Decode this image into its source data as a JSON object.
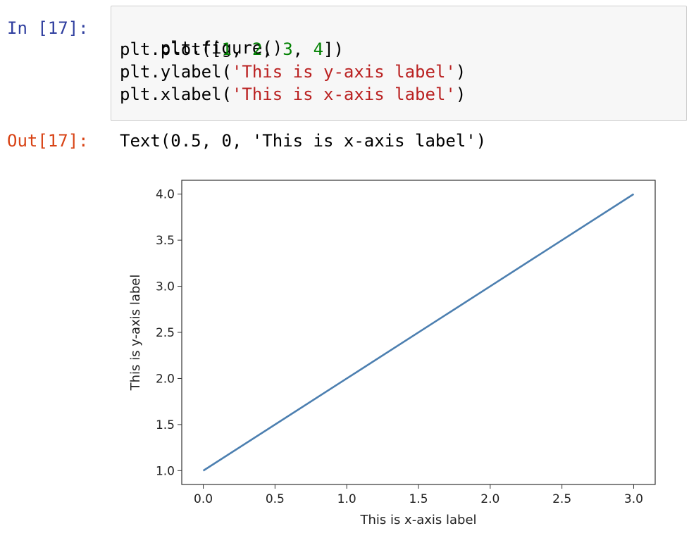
{
  "cell": {
    "in_prompt": "In [17]:",
    "out_prompt": "Out[17]:",
    "code_lines": [
      "plt.figure()",
      "plt.plot([1, 2, 3, 4])",
      "plt.ylabel('This is y-axis label')",
      "plt.xlabel('This is x-axis label')"
    ],
    "output_text": "Text(0.5, 0, 'This is x-axis label')"
  },
  "colors": {
    "in_prompt": "#303f9f",
    "out_prompt": "#d84315",
    "number": "#008000",
    "string": "#ba2121",
    "line": "#4c7fb0"
  },
  "chart_data": {
    "type": "line",
    "x": [
      0.0,
      1.0,
      2.0,
      3.0
    ],
    "series": [
      {
        "values": [
          1,
          2,
          3,
          4
        ]
      }
    ],
    "xlabel": "This is x-axis label",
    "ylabel": "This is y-axis label",
    "xlim": [
      -0.15,
      3.15
    ],
    "ylim": [
      0.85,
      4.15
    ],
    "x_ticks": [
      "0.0",
      "0.5",
      "1.0",
      "1.5",
      "2.0",
      "2.5",
      "3.0"
    ],
    "y_ticks": [
      "1.0",
      "1.5",
      "2.0",
      "2.5",
      "3.0",
      "3.5",
      "4.0"
    ],
    "grid": false
  }
}
